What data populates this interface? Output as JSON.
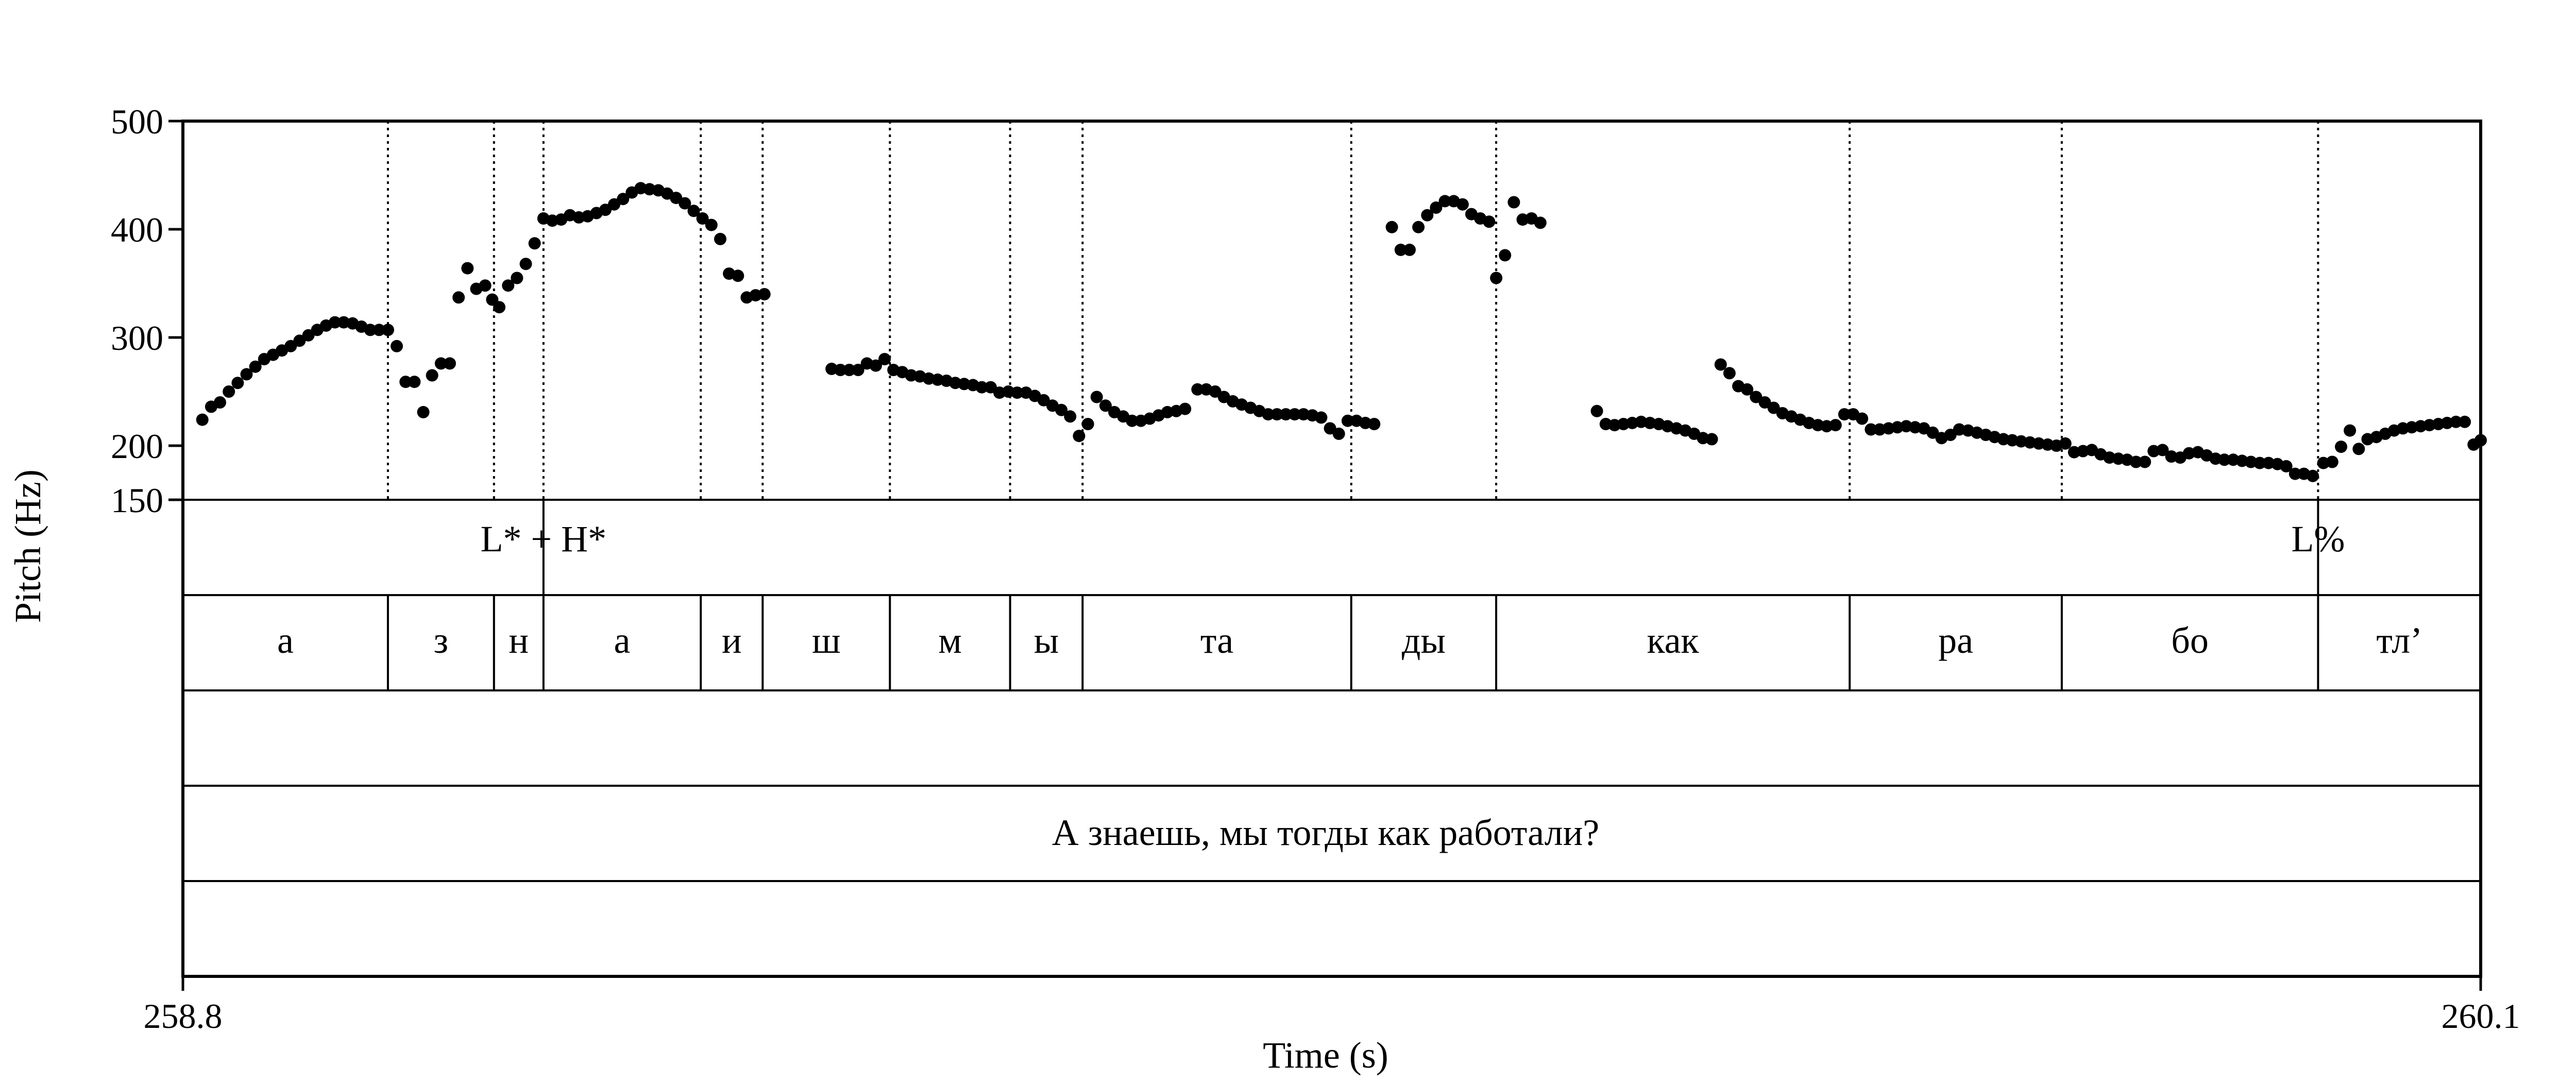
{
  "chart_data": {
    "type": "scatter",
    "xlabel": "Time (s)",
    "ylabel": "Pitch (Hz)",
    "xlim": [
      258.8,
      260.1
    ],
    "ylim": [
      150,
      500
    ],
    "x_tick_labels": [
      "258.8",
      "260.1"
    ],
    "y_ticks": [
      150,
      200,
      300,
      400,
      500
    ],
    "y_tick_labels": [
      "150",
      "200",
      "300",
      "400",
      "500"
    ],
    "grid": false,
    "colors": {
      "points": "#000000",
      "lines": "#000000"
    },
    "boundaries": [
      258.916,
      258.976,
      259.004,
      259.093,
      259.128,
      259.2,
      259.268,
      259.309,
      259.461,
      259.543,
      259.743,
      259.863,
      260.008
    ],
    "tones": [
      {
        "label": "L* + H*",
        "time": 259.004
      },
      {
        "label": "L%",
        "time": 260.008
      }
    ],
    "segments": [
      {
        "label": "а",
        "start": 258.8,
        "end": 258.916
      },
      {
        "label": "з",
        "start": 258.916,
        "end": 258.976
      },
      {
        "label": "н",
        "start": 258.976,
        "end": 259.004
      },
      {
        "label": "а",
        "start": 259.004,
        "end": 259.093
      },
      {
        "label": "и",
        "start": 259.093,
        "end": 259.128
      },
      {
        "label": "ш",
        "start": 259.128,
        "end": 259.2
      },
      {
        "label": "м",
        "start": 259.2,
        "end": 259.268
      },
      {
        "label": "ы",
        "start": 259.268,
        "end": 259.309
      },
      {
        "label": "та",
        "start": 259.309,
        "end": 259.461
      },
      {
        "label": "ды",
        "start": 259.461,
        "end": 259.543
      },
      {
        "label": "как",
        "start": 259.543,
        "end": 259.743
      },
      {
        "label": "ра",
        "start": 259.743,
        "end": 259.863
      },
      {
        "label": "бо",
        "start": 259.863,
        "end": 260.008
      },
      {
        "label": "тл’",
        "start": 260.008,
        "end": 260.1
      }
    ],
    "sentence": "А знаешь, мы тогды как работали?",
    "pitch_points": [
      [
        258.811,
        224
      ],
      [
        258.816,
        236
      ],
      [
        258.821,
        240
      ],
      [
        258.826,
        250
      ],
      [
        258.831,
        258
      ],
      [
        258.836,
        266
      ],
      [
        258.841,
        273
      ],
      [
        258.846,
        280
      ],
      [
        258.851,
        284
      ],
      [
        258.856,
        288
      ],
      [
        258.861,
        292
      ],
      [
        258.866,
        297
      ],
      [
        258.871,
        302
      ],
      [
        258.876,
        307
      ],
      [
        258.881,
        311
      ],
      [
        258.886,
        314
      ],
      [
        258.891,
        314
      ],
      [
        258.896,
        313
      ],
      [
        258.901,
        310
      ],
      [
        258.906,
        307
      ],
      [
        258.911,
        307
      ],
      [
        258.916,
        307
      ],
      [
        258.921,
        292
      ],
      [
        258.926,
        259
      ],
      [
        258.931,
        259
      ],
      [
        258.936,
        231
      ],
      [
        258.941,
        265
      ],
      [
        258.946,
        276
      ],
      [
        258.951,
        276
      ],
      [
        258.956,
        337
      ],
      [
        258.961,
        364
      ],
      [
        258.966,
        345
      ],
      [
        258.971,
        348
      ],
      [
        258.975,
        335
      ],
      [
        258.979,
        328
      ],
      [
        258.984,
        348
      ],
      [
        258.989,
        355
      ],
      [
        258.994,
        368
      ],
      [
        258.999,
        387
      ],
      [
        259.004,
        410
      ],
      [
        259.009,
        408
      ],
      [
        259.014,
        409
      ],
      [
        259.019,
        413
      ],
      [
        259.024,
        411
      ],
      [
        259.029,
        412
      ],
      [
        259.034,
        415
      ],
      [
        259.039,
        418
      ],
      [
        259.044,
        423
      ],
      [
        259.049,
        428
      ],
      [
        259.054,
        434
      ],
      [
        259.059,
        438
      ],
      [
        259.064,
        437
      ],
      [
        259.069,
        436
      ],
      [
        259.074,
        433
      ],
      [
        259.079,
        429
      ],
      [
        259.084,
        424
      ],
      [
        259.089,
        417
      ],
      [
        259.094,
        410
      ],
      [
        259.099,
        404
      ],
      [
        259.104,
        391
      ],
      [
        259.109,
        359
      ],
      [
        259.114,
        357
      ],
      [
        259.119,
        337
      ],
      [
        259.124,
        339
      ],
      [
        259.129,
        340
      ],
      [
        259.167,
        271
      ],
      [
        259.172,
        270
      ],
      [
        259.177,
        270
      ],
      [
        259.182,
        270
      ],
      [
        259.187,
        276
      ],
      [
        259.192,
        274
      ],
      [
        259.197,
        280
      ],
      [
        259.202,
        270
      ],
      [
        259.207,
        268
      ],
      [
        259.212,
        265
      ],
      [
        259.217,
        264
      ],
      [
        259.222,
        262
      ],
      [
        259.227,
        261
      ],
      [
        259.232,
        260
      ],
      [
        259.237,
        258
      ],
      [
        259.242,
        257
      ],
      [
        259.247,
        256
      ],
      [
        259.252,
        254
      ],
      [
        259.257,
        254
      ],
      [
        259.262,
        249
      ],
      [
        259.267,
        250
      ],
      [
        259.272,
        249
      ],
      [
        259.277,
        249
      ],
      [
        259.282,
        246
      ],
      [
        259.287,
        242
      ],
      [
        259.292,
        237
      ],
      [
        259.297,
        233
      ],
      [
        259.302,
        227
      ],
      [
        259.307,
        209
      ],
      [
        259.312,
        220
      ],
      [
        259.317,
        245
      ],
      [
        259.322,
        237
      ],
      [
        259.327,
        231
      ],
      [
        259.332,
        227
      ],
      [
        259.337,
        223
      ],
      [
        259.342,
        223
      ],
      [
        259.347,
        225
      ],
      [
        259.352,
        228
      ],
      [
        259.357,
        231
      ],
      [
        259.362,
        232
      ],
      [
        259.367,
        234
      ],
      [
        259.374,
        252
      ],
      [
        259.379,
        252
      ],
      [
        259.384,
        250
      ],
      [
        259.389,
        245
      ],
      [
        259.394,
        241
      ],
      [
        259.399,
        238
      ],
      [
        259.404,
        235
      ],
      [
        259.409,
        232
      ],
      [
        259.414,
        229
      ],
      [
        259.419,
        229
      ],
      [
        259.424,
        229
      ],
      [
        259.429,
        229
      ],
      [
        259.434,
        229
      ],
      [
        259.439,
        228
      ],
      [
        259.444,
        226
      ],
      [
        259.449,
        216
      ],
      [
        259.454,
        211
      ],
      [
        259.459,
        223
      ],
      [
        259.464,
        223
      ],
      [
        259.469,
        221
      ],
      [
        259.474,
        220
      ],
      [
        259.484,
        402
      ],
      [
        259.489,
        381
      ],
      [
        259.494,
        381
      ],
      [
        259.499,
        402
      ],
      [
        259.504,
        413
      ],
      [
        259.509,
        420
      ],
      [
        259.514,
        426
      ],
      [
        259.519,
        426
      ],
      [
        259.524,
        423
      ],
      [
        259.529,
        414
      ],
      [
        259.534,
        410
      ],
      [
        259.539,
        407
      ],
      [
        259.543,
        355
      ],
      [
        259.548,
        376
      ],
      [
        259.553,
        425
      ],
      [
        259.558,
        409
      ],
      [
        259.563,
        410
      ],
      [
        259.568,
        406
      ],
      [
        259.6,
        232
      ],
      [
        259.605,
        220
      ],
      [
        259.61,
        219
      ],
      [
        259.615,
        220
      ],
      [
        259.62,
        221
      ],
      [
        259.625,
        222
      ],
      [
        259.63,
        221
      ],
      [
        259.635,
        220
      ],
      [
        259.64,
        218
      ],
      [
        259.645,
        216
      ],
      [
        259.65,
        214
      ],
      [
        259.655,
        211
      ],
      [
        259.66,
        207
      ],
      [
        259.665,
        206
      ],
      [
        259.67,
        275
      ],
      [
        259.675,
        267
      ],
      [
        259.68,
        255
      ],
      [
        259.685,
        252
      ],
      [
        259.69,
        245
      ],
      [
        259.695,
        240
      ],
      [
        259.7,
        235
      ],
      [
        259.705,
        230
      ],
      [
        259.71,
        227
      ],
      [
        259.715,
        224
      ],
      [
        259.72,
        221
      ],
      [
        259.725,
        219
      ],
      [
        259.73,
        218
      ],
      [
        259.735,
        219
      ],
      [
        259.74,
        229
      ],
      [
        259.745,
        229
      ],
      [
        259.75,
        225
      ],
      [
        259.755,
        215
      ],
      [
        259.76,
        215
      ],
      [
        259.765,
        216
      ],
      [
        259.77,
        217
      ],
      [
        259.775,
        218
      ],
      [
        259.78,
        217
      ],
      [
        259.785,
        216
      ],
      [
        259.79,
        212
      ],
      [
        259.795,
        207
      ],
      [
        259.8,
        210
      ],
      [
        259.805,
        215
      ],
      [
        259.81,
        214
      ],
      [
        259.815,
        212
      ],
      [
        259.82,
        210
      ],
      [
        259.825,
        208
      ],
      [
        259.83,
        206
      ],
      [
        259.835,
        205
      ],
      [
        259.84,
        204
      ],
      [
        259.845,
        203
      ],
      [
        259.85,
        202
      ],
      [
        259.855,
        201
      ],
      [
        259.86,
        200
      ],
      [
        259.865,
        202
      ],
      [
        259.87,
        194
      ],
      [
        259.875,
        195
      ],
      [
        259.88,
        196
      ],
      [
        259.885,
        192
      ],
      [
        259.89,
        189
      ],
      [
        259.895,
        188
      ],
      [
        259.9,
        187
      ],
      [
        259.905,
        185
      ],
      [
        259.91,
        185
      ],
      [
        259.915,
        195
      ],
      [
        259.92,
        196
      ],
      [
        259.925,
        190
      ],
      [
        259.93,
        189
      ],
      [
        259.935,
        193
      ],
      [
        259.94,
        194
      ],
      [
        259.945,
        191
      ],
      [
        259.95,
        188
      ],
      [
        259.955,
        187
      ],
      [
        259.96,
        187
      ],
      [
        259.965,
        186
      ],
      [
        259.97,
        185
      ],
      [
        259.975,
        184
      ],
      [
        259.98,
        184
      ],
      [
        259.985,
        183
      ],
      [
        259.99,
        181
      ],
      [
        259.995,
        174
      ],
      [
        260.0,
        174
      ],
      [
        260.005,
        172
      ],
      [
        260.011,
        184
      ],
      [
        260.016,
        185
      ],
      [
        260.021,
        199
      ],
      [
        260.026,
        214
      ],
      [
        260.031,
        197
      ],
      [
        260.036,
        206
      ],
      [
        260.041,
        208
      ],
      [
        260.046,
        211
      ],
      [
        260.051,
        214
      ],
      [
        260.056,
        216
      ],
      [
        260.061,
        217
      ],
      [
        260.066,
        218
      ],
      [
        260.071,
        219
      ],
      [
        260.076,
        220
      ],
      [
        260.081,
        221
      ],
      [
        260.086,
        222
      ],
      [
        260.091,
        222
      ],
      [
        260.096,
        201
      ],
      [
        260.1,
        205
      ]
    ]
  }
}
